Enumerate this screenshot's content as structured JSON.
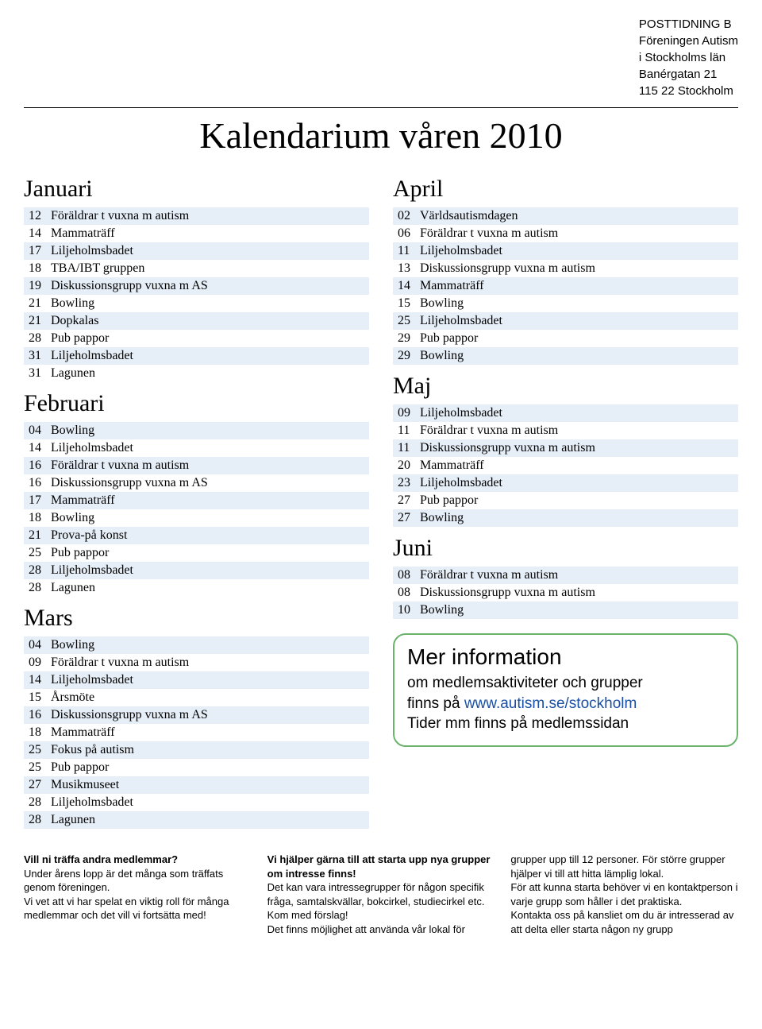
{
  "header": {
    "line1": "POSTTIDNING B",
    "line2": "Föreningen Autism",
    "line3": "i Stockholms län",
    "line4": "Banérgatan 21",
    "line5": "115 22 Stockholm"
  },
  "title": "Kalendarium våren 2010",
  "colors": {
    "row_odd": "#e6eef7",
    "row_even": "#ffffff",
    "box_border": "#6bb36b",
    "link": "#1a4fa3"
  },
  "left": [
    {
      "name": "Januari",
      "rows": [
        {
          "day": "12",
          "text": "Föräldrar t vuxna m autism"
        },
        {
          "day": "14",
          "text": "Mammaträff"
        },
        {
          "day": "17",
          "text": "Liljeholmsbadet"
        },
        {
          "day": "18",
          "text": "TBA/IBT gruppen"
        },
        {
          "day": "19",
          "text": "Diskussionsgrupp vuxna m AS"
        },
        {
          "day": "21",
          "text": "Bowling"
        },
        {
          "day": "21",
          "text": "Dopkalas"
        },
        {
          "day": "28",
          "text": "Pub pappor"
        },
        {
          "day": "31",
          "text": "Liljeholmsbadet"
        },
        {
          "day": "31",
          "text": "Lagunen"
        }
      ]
    },
    {
      "name": "Februari",
      "rows": [
        {
          "day": "04",
          "text": "Bowling"
        },
        {
          "day": "14",
          "text": "Liljeholmsbadet"
        },
        {
          "day": "16",
          "text": "Föräldrar t vuxna m autism"
        },
        {
          "day": "16",
          "text": "Diskussionsgrupp vuxna m AS"
        },
        {
          "day": "17",
          "text": "Mammaträff"
        },
        {
          "day": "18",
          "text": "Bowling"
        },
        {
          "day": "21",
          "text": "Prova-på konst"
        },
        {
          "day": "25",
          "text": "Pub pappor"
        },
        {
          "day": "28",
          "text": "Liljeholmsbadet"
        },
        {
          "day": "28",
          "text": "Lagunen"
        }
      ]
    },
    {
      "name": "Mars",
      "rows": [
        {
          "day": "04",
          "text": "Bowling"
        },
        {
          "day": "09",
          "text": "Föräldrar t vuxna m autism"
        },
        {
          "day": "14",
          "text": "Liljeholmsbadet"
        },
        {
          "day": "15",
          "text": "Årsmöte"
        },
        {
          "day": "16",
          "text": "Diskussionsgrupp vuxna m AS"
        },
        {
          "day": "18",
          "text": "Mammaträff"
        },
        {
          "day": "25",
          "text": "Fokus på autism"
        },
        {
          "day": "25",
          "text": "Pub pappor"
        },
        {
          "day": "27",
          "text": "Musikmuseet"
        },
        {
          "day": "28",
          "text": "Liljeholmsbadet"
        },
        {
          "day": "28",
          "text": "Lagunen"
        }
      ]
    }
  ],
  "right": [
    {
      "name": "April",
      "rows": [
        {
          "day": "02",
          "text": "Världsautismdagen"
        },
        {
          "day": "06",
          "text": "Föräldrar t vuxna m autism"
        },
        {
          "day": "11",
          "text": "Liljeholmsbadet"
        },
        {
          "day": "13",
          "text": "Diskussionsgrupp vuxna m autism"
        },
        {
          "day": "14",
          "text": "Mammaträff"
        },
        {
          "day": "15",
          "text": "Bowling"
        },
        {
          "day": "25",
          "text": "Liljeholmsbadet"
        },
        {
          "day": "29",
          "text": "Pub pappor"
        },
        {
          "day": "29",
          "text": "Bowling"
        }
      ]
    },
    {
      "name": "Maj",
      "rows": [
        {
          "day": "09",
          "text": "Liljeholmsbadet"
        },
        {
          "day": "11",
          "text": "Föräldrar t vuxna m autism"
        },
        {
          "day": "11",
          "text": "Diskussionsgrupp vuxna m autism"
        },
        {
          "day": "20",
          "text": "Mammaträff"
        },
        {
          "day": "23",
          "text": "Liljeholmsbadet"
        },
        {
          "day": "27",
          "text": "Pub pappor"
        },
        {
          "day": "27",
          "text": "Bowling"
        }
      ]
    },
    {
      "name": "Juni",
      "rows": [
        {
          "day": "08",
          "text": "Föräldrar t vuxna m autism"
        },
        {
          "day": "08",
          "text": "Diskussionsgrupp vuxna m autism"
        },
        {
          "day": "10",
          "text": "Bowling"
        }
      ]
    }
  ],
  "info": {
    "title": "Mer information",
    "line1": "om medlemsaktiviteter och grupper",
    "line2a": "finns på ",
    "link": "www.autism.se/stockholm",
    "line3": "Tider mm finns på medlemssidan"
  },
  "footer": {
    "col1": {
      "h": "Vill ni träffa andra medlemmar?",
      "p1": "Under årens lopp är det många som träffats genom föreningen.",
      "p2": "Vi vet att vi har spelat en viktig roll för många medlemmar och det vill vi fortsätta med!"
    },
    "col2": {
      "h": "Vi hjälper gärna till att starta upp nya grupper om intresse finns!",
      "p1": "Det kan vara intressegrupper för någon specifik fråga, samtalskvällar, bokcirkel, studiecirkel etc. Kom med förslag!",
      "p2": "Det finns möjlighet att använda vår lokal för"
    },
    "col3": {
      "p1": "grupper upp till 12 personer. För större grupper hjälper vi till att hitta lämplig lokal.",
      "p2": "För att kunna starta behöver vi en kontaktperson i varje grupp som håller i det praktiska.",
      "p3": "Kontakta oss på kansliet om du är intresserad av att delta eller starta någon ny grupp"
    }
  }
}
